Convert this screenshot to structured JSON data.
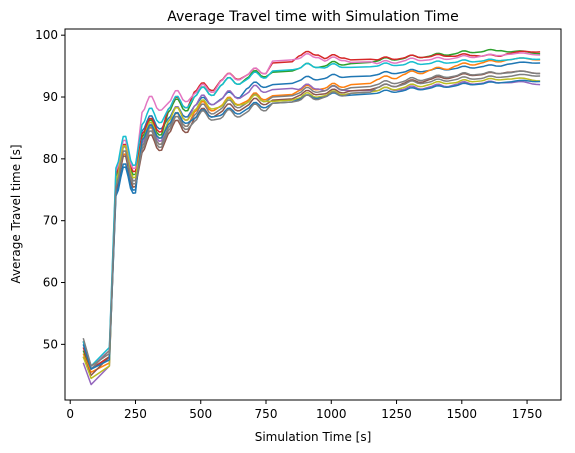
{
  "chart_data": {
    "type": "line",
    "title": "Average Travel time with Simulation Time",
    "xlabel": "Simulation Time [s]",
    "ylabel": "Average Travel time [s]",
    "xlim": [
      -20,
      1880
    ],
    "ylim": [
      41,
      101
    ],
    "xticks": [
      0,
      250,
      500,
      750,
      1000,
      1250,
      1500,
      1750
    ],
    "yticks": [
      50,
      60,
      70,
      80,
      90,
      100
    ],
    "grid": false,
    "legend": "none",
    "profile_t": [
      50,
      80,
      150,
      175,
      250,
      275,
      350,
      375,
      450,
      475,
      550,
      575,
      650,
      675,
      750,
      775,
      850,
      875,
      950,
      975,
      1050,
      1075,
      1150,
      1175,
      1250,
      1275,
      1350,
      1375,
      1450,
      1475,
      1550,
      1575,
      1650,
      1675,
      1800
    ],
    "bumps": [
      [
        175,
        5.5
      ],
      [
        275,
        2.8
      ],
      [
        375,
        2.2
      ],
      [
        475,
        1.6
      ],
      [
        575,
        1.3
      ],
      [
        675,
        1.2
      ],
      [
        875,
        0.8
      ],
      [
        975,
        0.7
      ],
      [
        1175,
        0.5
      ],
      [
        1275,
        0.5
      ],
      [
        1375,
        0.4
      ],
      [
        1475,
        0.4
      ],
      [
        1575,
        0.3
      ],
      [
        1675,
        0.3
      ]
    ],
    "series": [
      {
        "color": "#1f77b4",
        "values": [
          50.5,
          46.0,
          47.5,
          74.0,
          74.5,
          84.5,
          84.9,
          86.5,
          86.8,
          88.5,
          88.8,
          89.6,
          89.9,
          91.3,
          91.6,
          92.0,
          92.2,
          92.6,
          92.8,
          93.0,
          93.2,
          93.3,
          93.4,
          93.6,
          93.8,
          94.0,
          94.1,
          94.3,
          94.4,
          94.6,
          94.7,
          94.9,
          95.0,
          95.3,
          95.5
        ]
      },
      {
        "color": "#ff7f0e",
        "values": [
          48.5,
          45.5,
          47.0,
          75.0,
          75.5,
          82.0,
          82.4,
          85.0,
          85.3,
          87.5,
          87.8,
          88.5,
          88.8,
          89.3,
          89.6,
          90.2,
          90.4,
          91.0,
          91.2,
          91.4,
          91.6,
          92.0,
          92.2,
          92.8,
          93.0,
          93.6,
          93.8,
          94.3,
          94.5,
          95.0,
          95.2,
          95.5,
          95.7,
          96.0,
          96.0
        ]
      },
      {
        "color": "#2ca02c",
        "values": [
          49.0,
          46.0,
          48.0,
          77.0,
          77.5,
          83.5,
          83.9,
          87.5,
          87.8,
          90.0,
          90.3,
          91.8,
          92.1,
          93.0,
          93.3,
          94.0,
          94.2,
          94.6,
          94.8,
          95.0,
          95.2,
          95.4,
          95.6,
          95.8,
          96.0,
          96.2,
          96.4,
          96.6,
          96.8,
          97.0,
          97.2,
          97.3,
          97.5,
          97.3,
          97.0
        ]
      },
      {
        "color": "#d62728",
        "values": [
          49.5,
          46.0,
          48.0,
          77.5,
          78.0,
          84.0,
          84.4,
          88.0,
          88.3,
          90.8,
          91.1,
          92.6,
          92.9,
          93.5,
          93.8,
          95.5,
          95.7,
          96.6,
          96.8,
          96.2,
          96.3,
          96.0,
          96.1,
          96.0,
          96.1,
          96.3,
          96.4,
          96.5,
          96.6,
          96.6,
          96.7,
          96.6,
          96.6,
          97.0,
          97.3
        ]
      },
      {
        "color": "#9467bd",
        "values": [
          47.0,
          43.5,
          46.5,
          76.0,
          76.5,
          82.5,
          82.9,
          86.0,
          86.3,
          88.5,
          88.8,
          89.5,
          89.8,
          90.5,
          90.8,
          91.2,
          91.4,
          91.2,
          91.3,
          91.0,
          91.1,
          91.0,
          91.1,
          91.0,
          91.1,
          91.2,
          91.3,
          91.6,
          91.7,
          92.0,
          92.1,
          92.2,
          92.3,
          92.3,
          92.0
        ]
      },
      {
        "color": "#8c564b",
        "values": [
          48.0,
          45.0,
          48.0,
          75.0,
          75.5,
          81.0,
          81.4,
          84.0,
          84.3,
          86.5,
          86.8,
          87.5,
          87.8,
          88.5,
          88.8,
          89.5,
          89.7,
          90.2,
          90.4,
          90.5,
          90.7,
          91.0,
          91.2,
          91.5,
          91.7,
          92.2,
          92.4,
          92.8,
          93.0,
          93.3,
          93.5,
          93.6,
          93.8,
          94.0,
          93.8
        ]
      },
      {
        "color": "#e377c2",
        "values": [
          50.5,
          46.5,
          49.0,
          78.0,
          78.5,
          87.5,
          87.9,
          89.0,
          89.3,
          90.5,
          90.8,
          92.5,
          92.8,
          93.5,
          93.8,
          95.8,
          96.0,
          96.2,
          96.4,
          95.8,
          95.9,
          95.6,
          95.7,
          95.4,
          95.5,
          95.8,
          95.9,
          96.0,
          96.1,
          96.3,
          96.4,
          96.6,
          96.7,
          96.9,
          96.8
        ]
      },
      {
        "color": "#7f7f7f",
        "values": [
          50.5,
          46.0,
          49.0,
          76.0,
          76.5,
          82.0,
          82.4,
          85.0,
          85.3,
          87.0,
          87.3,
          88.0,
          88.3,
          89.0,
          89.3,
          90.0,
          90.2,
          90.6,
          90.8,
          91.0,
          91.2,
          91.5,
          91.7,
          92.0,
          92.2,
          92.5,
          92.7,
          93.0,
          93.2,
          93.4,
          93.6,
          93.7,
          93.8,
          93.9,
          93.8
        ]
      },
      {
        "color": "#bcbd22",
        "values": [
          48.0,
          44.5,
          46.5,
          76.5,
          77.0,
          83.0,
          83.4,
          86.0,
          86.3,
          87.8,
          88.1,
          88.4,
          88.7,
          89.0,
          89.3,
          89.3,
          89.5,
          89.8,
          90.0,
          90.2,
          90.4,
          90.6,
          90.8,
          91.0,
          91.2,
          91.5,
          91.7,
          92.0,
          92.2,
          92.3,
          92.5,
          92.6,
          92.8,
          92.9,
          92.6
        ]
      },
      {
        "color": "#17becf",
        "values": [
          50.5,
          46.5,
          49.5,
          78.5,
          79.0,
          85.5,
          85.9,
          88.0,
          88.3,
          90.0,
          90.3,
          91.8,
          92.1,
          92.8,
          93.1,
          94.2,
          94.4,
          94.6,
          94.8,
          94.7,
          94.8,
          94.8,
          94.9,
          95.0,
          95.1,
          95.2,
          95.3,
          95.4,
          95.5,
          95.6,
          95.7,
          95.8,
          95.9,
          96.0,
          96.1
        ]
      },
      {
        "color": "#1f77b4",
        "values": [
          50.0,
          46.0,
          47.5,
          74.5,
          75.0,
          83.0,
          83.4,
          85.5,
          85.8,
          86.5,
          86.8,
          87.0,
          87.3,
          88.0,
          88.3,
          89.0,
          89.2,
          89.6,
          89.8,
          90.0,
          90.2,
          90.3,
          90.5,
          90.6,
          90.8,
          91.0,
          91.2,
          91.4,
          91.6,
          91.8,
          92.0,
          92.1,
          92.3,
          92.4,
          92.5
        ]
      },
      {
        "color": "#7f7f7f",
        "values": [
          51.0,
          46.5,
          48.5,
          75.5,
          76.0,
          81.5,
          81.9,
          84.5,
          84.8,
          86.0,
          86.3,
          86.5,
          86.8,
          87.5,
          87.8,
          89.0,
          89.2,
          89.4,
          89.6,
          90.0,
          90.2,
          90.6,
          90.8,
          91.5,
          91.7,
          92.0,
          92.2,
          92.4,
          92.6,
          92.8,
          92.9,
          93.0,
          93.2,
          93.3,
          93.4
        ]
      }
    ]
  }
}
